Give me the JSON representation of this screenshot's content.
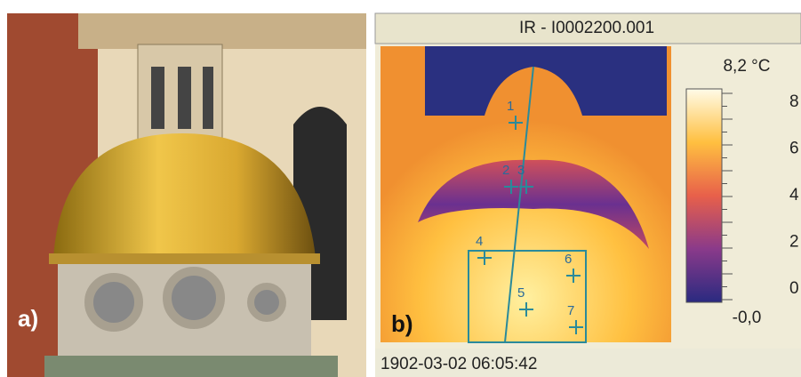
{
  "panels": {
    "a": {
      "label": "a)"
    },
    "b": {
      "label": "b)",
      "title": "IR - I0002200.001",
      "scale_max": "8,2 °C",
      "scale_min": "-0,0",
      "scale_ticks": [
        "8",
        "6",
        "4",
        "2",
        "0"
      ],
      "timestamp": "1902-03-02 06:05:42",
      "markers": [
        "1",
        "2",
        "3",
        "4",
        "5",
        "6",
        "7"
      ]
    }
  }
}
